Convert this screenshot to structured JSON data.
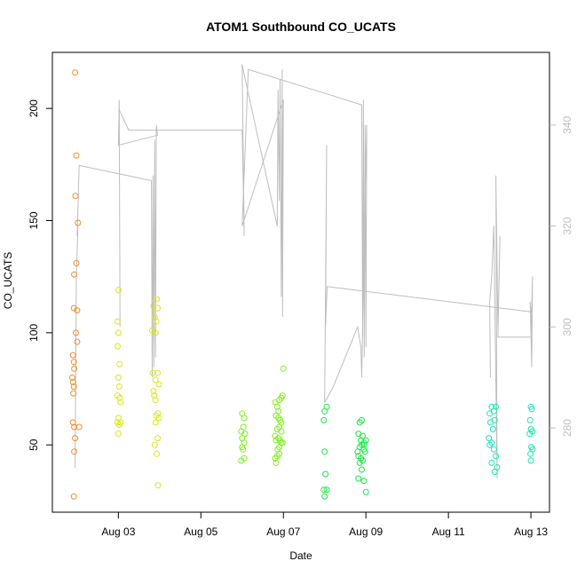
{
  "chart_data": {
    "type": "scatter",
    "title": "ATOM1 Southbound CO_UCATS",
    "xlabel": "Date",
    "ylabel": "CO_UCATS",
    "x_ticks": [
      "Aug 03",
      "Aug 05",
      "Aug 07",
      "Aug 09",
      "Aug 11",
      "Aug 13"
    ],
    "x_tick_values": [
      3,
      5,
      7,
      9,
      11,
      13
    ],
    "xlim": [
      1.4,
      13.45
    ],
    "ylim": [
      20,
      225
    ],
    "y_ticks": [
      50,
      100,
      150,
      200
    ],
    "y2_ticks": [
      280,
      300,
      320,
      340
    ],
    "y2lim": [
      263.3,
      354.4
    ],
    "grid": false,
    "legend": "none",
    "colors": {
      "orange": "#f28c28",
      "yellow": "#d8e61a",
      "lime": "#80f020",
      "green": "#19e646",
      "cyan": "#1ae6b0",
      "line": "#bebebe"
    },
    "scatter_groups": [
      {
        "color": "orange",
        "points": [
          [
            1.95,
            216
          ],
          [
            1.98,
            179
          ],
          [
            1.96,
            161
          ],
          [
            2.02,
            149
          ],
          [
            1.98,
            131
          ],
          [
            1.93,
            126
          ],
          [
            1.92,
            111
          ],
          [
            2.0,
            110
          ],
          [
            1.97,
            100
          ],
          [
            2.0,
            96
          ],
          [
            1.9,
            90
          ],
          [
            1.92,
            87
          ],
          [
            1.93,
            84
          ],
          [
            1.88,
            80
          ],
          [
            1.9,
            78
          ],
          [
            1.92,
            76
          ],
          [
            1.91,
            73
          ],
          [
            1.9,
            60
          ],
          [
            1.93,
            58
          ],
          [
            2.05,
            58
          ],
          [
            1.95,
            53
          ],
          [
            1.93,
            47
          ],
          [
            1.92,
            27
          ]
        ]
      },
      {
        "color": "yellow",
        "points": [
          [
            3.0,
            119
          ],
          [
            2.98,
            105
          ],
          [
            3.0,
            100
          ],
          [
            2.98,
            94
          ],
          [
            3.03,
            86
          ],
          [
            3.0,
            80
          ],
          [
            3.02,
            76
          ],
          [
            2.98,
            72
          ],
          [
            3.03,
            71
          ],
          [
            3.05,
            69
          ],
          [
            3.0,
            62
          ],
          [
            2.98,
            60
          ],
          [
            3.05,
            60
          ],
          [
            3.02,
            59
          ],
          [
            3.0,
            55
          ],
          [
            3.85,
            112
          ],
          [
            3.88,
            107
          ],
          [
            3.93,
            115
          ],
          [
            3.95,
            111
          ],
          [
            3.82,
            101
          ],
          [
            3.9,
            100
          ],
          [
            3.92,
            105
          ],
          [
            3.84,
            82
          ],
          [
            3.95,
            82
          ],
          [
            3.9,
            79
          ],
          [
            3.85,
            74
          ],
          [
            3.98,
            77
          ],
          [
            3.87,
            72
          ],
          [
            3.9,
            70
          ],
          [
            3.96,
            64
          ],
          [
            3.92,
            63
          ],
          [
            3.98,
            62
          ],
          [
            3.9,
            60
          ],
          [
            3.95,
            53
          ],
          [
            3.88,
            50
          ],
          [
            3.93,
            46
          ],
          [
            3.96,
            32
          ]
        ]
      },
      {
        "color": "lime",
        "points": [
          [
            6.0,
            64
          ],
          [
            6.05,
            62
          ],
          [
            6.03,
            58
          ],
          [
            5.98,
            56
          ],
          [
            6.07,
            55
          ],
          [
            6.0,
            53
          ],
          [
            6.05,
            51
          ],
          [
            6.0,
            49
          ],
          [
            6.02,
            48
          ],
          [
            5.98,
            43
          ],
          [
            6.05,
            44
          ],
          [
            6.8,
            69
          ],
          [
            6.85,
            67
          ],
          [
            6.88,
            65
          ],
          [
            6.82,
            63
          ],
          [
            6.95,
            71
          ],
          [
            6.98,
            72
          ],
          [
            6.9,
            70
          ],
          [
            6.88,
            62
          ],
          [
            6.92,
            61
          ],
          [
            6.95,
            60
          ],
          [
            6.9,
            58
          ],
          [
            6.85,
            57
          ],
          [
            6.95,
            56
          ],
          [
            6.8,
            54
          ],
          [
            6.88,
            53
          ],
          [
            6.92,
            52
          ],
          [
            6.95,
            51
          ],
          [
            6.9,
            49
          ],
          [
            6.82,
            52
          ],
          [
            6.98,
            51
          ],
          [
            6.86,
            48
          ],
          [
            6.9,
            46
          ],
          [
            6.85,
            45
          ],
          [
            6.8,
            44
          ],
          [
            6.82,
            42
          ],
          [
            7.0,
            84
          ]
        ]
      },
      {
        "color": "green",
        "points": [
          [
            8.0,
            65
          ],
          [
            8.05,
            67
          ],
          [
            7.98,
            61
          ],
          [
            8.0,
            47
          ],
          [
            8.02,
            37
          ],
          [
            7.98,
            30
          ],
          [
            8.05,
            30
          ],
          [
            8.0,
            27
          ],
          [
            8.85,
            60
          ],
          [
            8.9,
            61
          ],
          [
            8.82,
            55
          ],
          [
            8.92,
            54
          ],
          [
            8.88,
            52
          ],
          [
            8.95,
            51
          ],
          [
            8.9,
            50
          ],
          [
            8.85,
            49
          ],
          [
            8.95,
            48
          ],
          [
            8.8,
            47
          ],
          [
            8.82,
            45
          ],
          [
            8.88,
            44
          ],
          [
            8.92,
            43
          ],
          [
            8.85,
            42
          ],
          [
            8.9,
            39
          ],
          [
            8.82,
            35
          ],
          [
            8.95,
            34
          ],
          [
            9.0,
            52
          ],
          [
            8.98,
            47
          ],
          [
            9.0,
            29
          ],
          [
            8.95,
            50
          ]
        ]
      },
      {
        "color": "cyan",
        "points": [
          [
            12.0,
            64
          ],
          [
            12.05,
            67
          ],
          [
            12.1,
            65
          ],
          [
            12.15,
            67
          ],
          [
            12.02,
            60
          ],
          [
            12.08,
            57
          ],
          [
            11.98,
            53
          ],
          [
            12.12,
            61
          ],
          [
            12.05,
            51
          ],
          [
            12.0,
            50
          ],
          [
            12.1,
            48
          ],
          [
            12.15,
            45
          ],
          [
            12.05,
            42
          ],
          [
            12.12,
            38
          ],
          [
            12.18,
            40
          ],
          [
            13.0,
            67
          ],
          [
            13.02,
            66
          ],
          [
            12.98,
            61
          ],
          [
            13.0,
            57
          ],
          [
            13.03,
            56
          ],
          [
            12.97,
            55
          ],
          [
            13.01,
            49
          ],
          [
            13.04,
            48
          ],
          [
            12.99,
            46
          ],
          [
            13.0,
            43
          ]
        ]
      }
    ],
    "line_series": {
      "axis": "right",
      "points": [
        [
          1.95,
          272
        ],
        [
          1.98,
          310
        ],
        [
          2.02,
          320
        ],
        [
          2.0,
          318
        ],
        [
          2.05,
          332
        ],
        [
          3.8,
          329
        ],
        [
          3.82,
          290
        ],
        [
          3.84,
          330
        ],
        [
          3.86,
          292
        ],
        [
          3.88,
          337
        ],
        [
          3.9,
          294
        ],
        [
          3.92,
          340
        ],
        [
          3.95,
          338
        ],
        [
          3.0,
          336
        ],
        [
          3.02,
          345
        ],
        [
          3.04,
          300
        ],
        [
          3.02,
          343
        ],
        [
          3.25,
          339
        ],
        [
          6.0,
          339
        ],
        [
          6.05,
          318
        ],
        [
          6.0,
          352
        ],
        [
          6.05,
          350
        ],
        [
          6.85,
          320
        ],
        [
          6.87,
          347
        ],
        [
          6.9,
          325
        ],
        [
          6.92,
          349
        ],
        [
          6.95,
          306
        ],
        [
          6.97,
          351
        ],
        [
          6.98,
          302
        ],
        [
          7.0,
          345
        ],
        [
          6.0,
          320
        ],
        [
          6.15,
          351
        ],
        [
          8.9,
          344
        ],
        [
          8.92,
          298
        ],
        [
          8.94,
          345
        ],
        [
          8.96,
          294
        ],
        [
          8.98,
          340
        ],
        [
          9.0,
          296
        ],
        [
          9.02,
          340
        ],
        [
          8.95,
          315
        ],
        [
          8.9,
          290
        ],
        [
          8.88,
          296
        ],
        [
          8.8,
          300
        ],
        [
          8.2,
          288
        ],
        [
          8.0,
          285
        ],
        [
          8.05,
          336
        ],
        [
          8.02,
          300
        ],
        [
          8.06,
          308
        ],
        [
          13.0,
          303
        ],
        [
          12.98,
          305
        ],
        [
          13.02,
          292
        ],
        [
          13.04,
          310
        ],
        [
          13.0,
          298
        ],
        [
          12.2,
          298
        ],
        [
          12.25,
          318
        ],
        [
          12.2,
          300
        ],
        [
          12.15,
          330
        ],
        [
          12.18,
          270
        ],
        [
          12.1,
          320
        ],
        [
          12.05,
          310
        ],
        [
          12.0,
          305
        ],
        [
          12.02,
          290
        ]
      ]
    }
  }
}
